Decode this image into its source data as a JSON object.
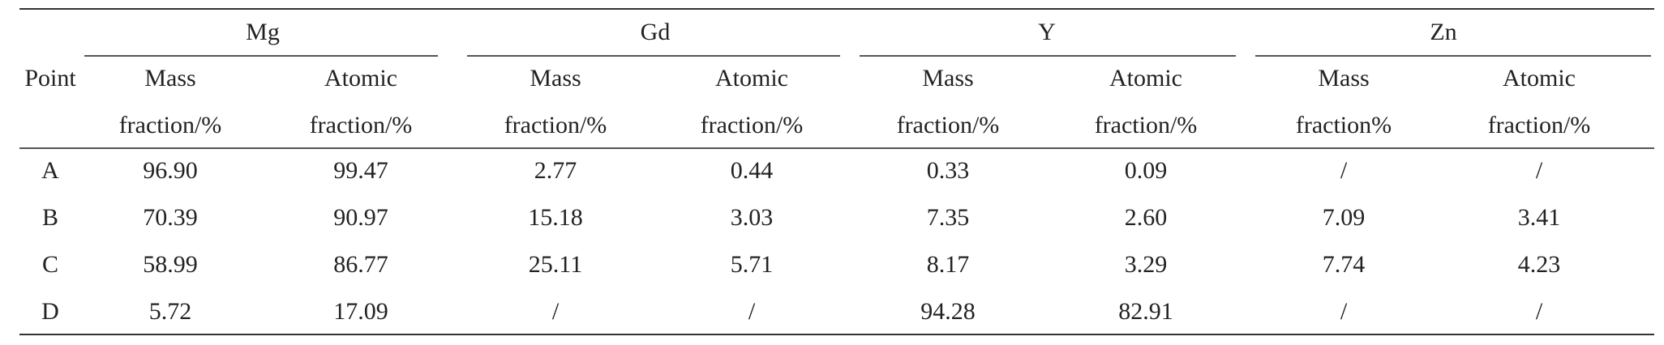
{
  "table": {
    "point_header": "Point",
    "elements": [
      "Mg",
      "Gd",
      "Y",
      "Zn"
    ],
    "subheaders": [
      [
        "Mass",
        "fraction/%"
      ],
      [
        "Atomic",
        "fraction/%"
      ],
      [
        "Mass",
        "fraction/%"
      ],
      [
        "Atomic",
        "fraction/%"
      ],
      [
        "Mass",
        "fraction/%"
      ],
      [
        "Atomic",
        "fraction/%"
      ],
      [
        "Mass",
        "fraction%"
      ],
      [
        "Atomic",
        "fraction/%"
      ]
    ],
    "rows": [
      {
        "point": "A",
        "values": [
          "96.90",
          "99.47",
          "2.77",
          "0.44",
          "0.33",
          "0.09",
          "/",
          "/"
        ]
      },
      {
        "point": "B",
        "values": [
          "70.39",
          "90.97",
          "15.18",
          "3.03",
          "7.35",
          "2.60",
          "7.09",
          "3.41"
        ]
      },
      {
        "point": "C",
        "values": [
          "58.99",
          "86.77",
          "25.11",
          "5.71",
          "8.17",
          "3.29",
          "7.74",
          "4.23"
        ]
      },
      {
        "point": "D",
        "values": [
          "5.72",
          "17.09",
          "/",
          "/",
          "94.28",
          "82.91",
          "/",
          "/"
        ]
      }
    ]
  }
}
